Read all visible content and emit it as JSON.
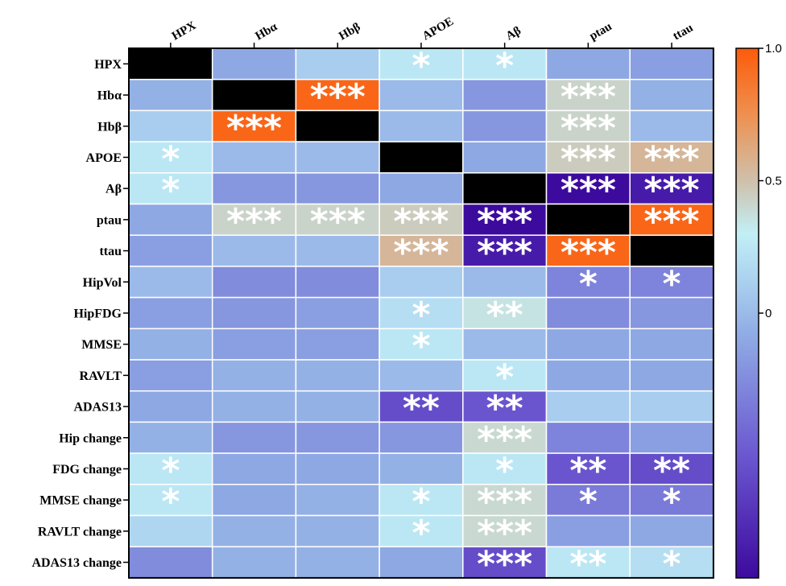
{
  "chart_data": {
    "type": "heatmap",
    "title": "",
    "columns": [
      "HPX",
      "Hbα",
      "Hbβ",
      "APOE",
      "Aβ",
      "ptau",
      "ttau"
    ],
    "rows": [
      "HPX",
      "Hbα",
      "Hbβ",
      "APOE",
      "Aβ",
      "ptau",
      "ttau",
      "HipVol",
      "HipFDG",
      "MMSE",
      "RAVLT",
      "ADAS13",
      "Hip change",
      "FDG change",
      "MMSE change",
      "RAVLT change",
      "ADAS13 change"
    ],
    "values": [
      [
        null,
        -0.1,
        0.1,
        0.25,
        0.25,
        -0.1,
        -0.15
      ],
      [
        -0.05,
        null,
        0.95,
        0.0,
        -0.2,
        0.42,
        -0.05
      ],
      [
        0.1,
        0.95,
        null,
        0.0,
        -0.2,
        0.42,
        0.0
      ],
      [
        0.25,
        0.0,
        0.0,
        null,
        -0.1,
        0.45,
        0.55
      ],
      [
        0.25,
        -0.2,
        -0.2,
        -0.1,
        null,
        -1.0,
        -0.9
      ],
      [
        -0.1,
        0.42,
        0.42,
        0.45,
        -1.0,
        null,
        0.95
      ],
      [
        -0.15,
        0.0,
        0.0,
        0.55,
        -0.9,
        0.95,
        null
      ],
      [
        0.0,
        -0.25,
        -0.25,
        0.1,
        0.0,
        -0.3,
        -0.3
      ],
      [
        -0.15,
        -0.2,
        -0.15,
        0.2,
        0.35,
        -0.25,
        -0.2
      ],
      [
        -0.05,
        -0.15,
        -0.15,
        0.25,
        0.0,
        -0.1,
        -0.1
      ],
      [
        -0.15,
        -0.05,
        -0.05,
        0.0,
        0.25,
        -0.1,
        -0.1
      ],
      [
        -0.1,
        -0.05,
        -0.05,
        -0.6,
        -0.55,
        0.1,
        0.1
      ],
      [
        -0.05,
        -0.2,
        -0.2,
        -0.2,
        0.4,
        -0.3,
        -0.15
      ],
      [
        0.25,
        -0.1,
        -0.1,
        -0.05,
        0.25,
        -0.55,
        -0.6
      ],
      [
        0.25,
        -0.1,
        -0.05,
        0.25,
        0.4,
        -0.35,
        -0.35
      ],
      [
        0.15,
        -0.05,
        -0.05,
        0.25,
        0.4,
        -0.15,
        -0.1
      ],
      [
        -0.25,
        -0.05,
        -0.05,
        -0.1,
        -0.6,
        0.25,
        0.2
      ]
    ],
    "significance": [
      [
        "",
        "",
        "",
        "*",
        "*",
        "",
        ""
      ],
      [
        "",
        "",
        "***",
        "",
        "",
        "***",
        ""
      ],
      [
        "",
        "***",
        "",
        "",
        "",
        "***",
        ""
      ],
      [
        "*",
        "",
        "",
        "",
        "",
        "***",
        "***"
      ],
      [
        "*",
        "",
        "",
        "",
        "",
        "***",
        "***"
      ],
      [
        "",
        "***",
        "***",
        "***",
        "***",
        "",
        "***"
      ],
      [
        "",
        "",
        "",
        "***",
        "***",
        "***",
        ""
      ],
      [
        "",
        "",
        "",
        "",
        "",
        "*",
        "*"
      ],
      [
        "",
        "",
        "",
        "*",
        "**",
        "",
        ""
      ],
      [
        "",
        "",
        "",
        "*",
        "",
        "",
        ""
      ],
      [
        "",
        "",
        "",
        "",
        "*",
        "",
        ""
      ],
      [
        "",
        "",
        "",
        "**",
        "**",
        "",
        ""
      ],
      [
        "",
        "",
        "",
        "",
        "***",
        "",
        ""
      ],
      [
        "*",
        "",
        "",
        "",
        "*",
        "**",
        "**"
      ],
      [
        "*",
        "",
        "",
        "*",
        "***",
        "*",
        "*"
      ],
      [
        "",
        "",
        "",
        "*",
        "***",
        "",
        ""
      ],
      [
        "",
        "",
        "",
        "",
        "***",
        "**",
        "*"
      ]
    ],
    "diagonal_color": "#000000",
    "colorbar": {
      "range": [
        -1.0,
        1.0
      ],
      "ticks": [
        1.0,
        0.5,
        0
      ],
      "tick_labels": [
        "1.0",
        "0.5",
        "0"
      ],
      "stops": [
        {
          "v": -1.0,
          "color": "#3d0a9e"
        },
        {
          "v": -0.55,
          "color": "#6a55cf"
        },
        {
          "v": -0.1,
          "color": "#8ea8e4"
        },
        {
          "v": 0.15,
          "color": "#aed6f0"
        },
        {
          "v": 0.3,
          "color": "#c2eff6"
        },
        {
          "v": 0.5,
          "color": "#cfc0ab"
        },
        {
          "v": 0.75,
          "color": "#ef9050"
        },
        {
          "v": 1.0,
          "color": "#fc5b0a"
        }
      ]
    }
  }
}
